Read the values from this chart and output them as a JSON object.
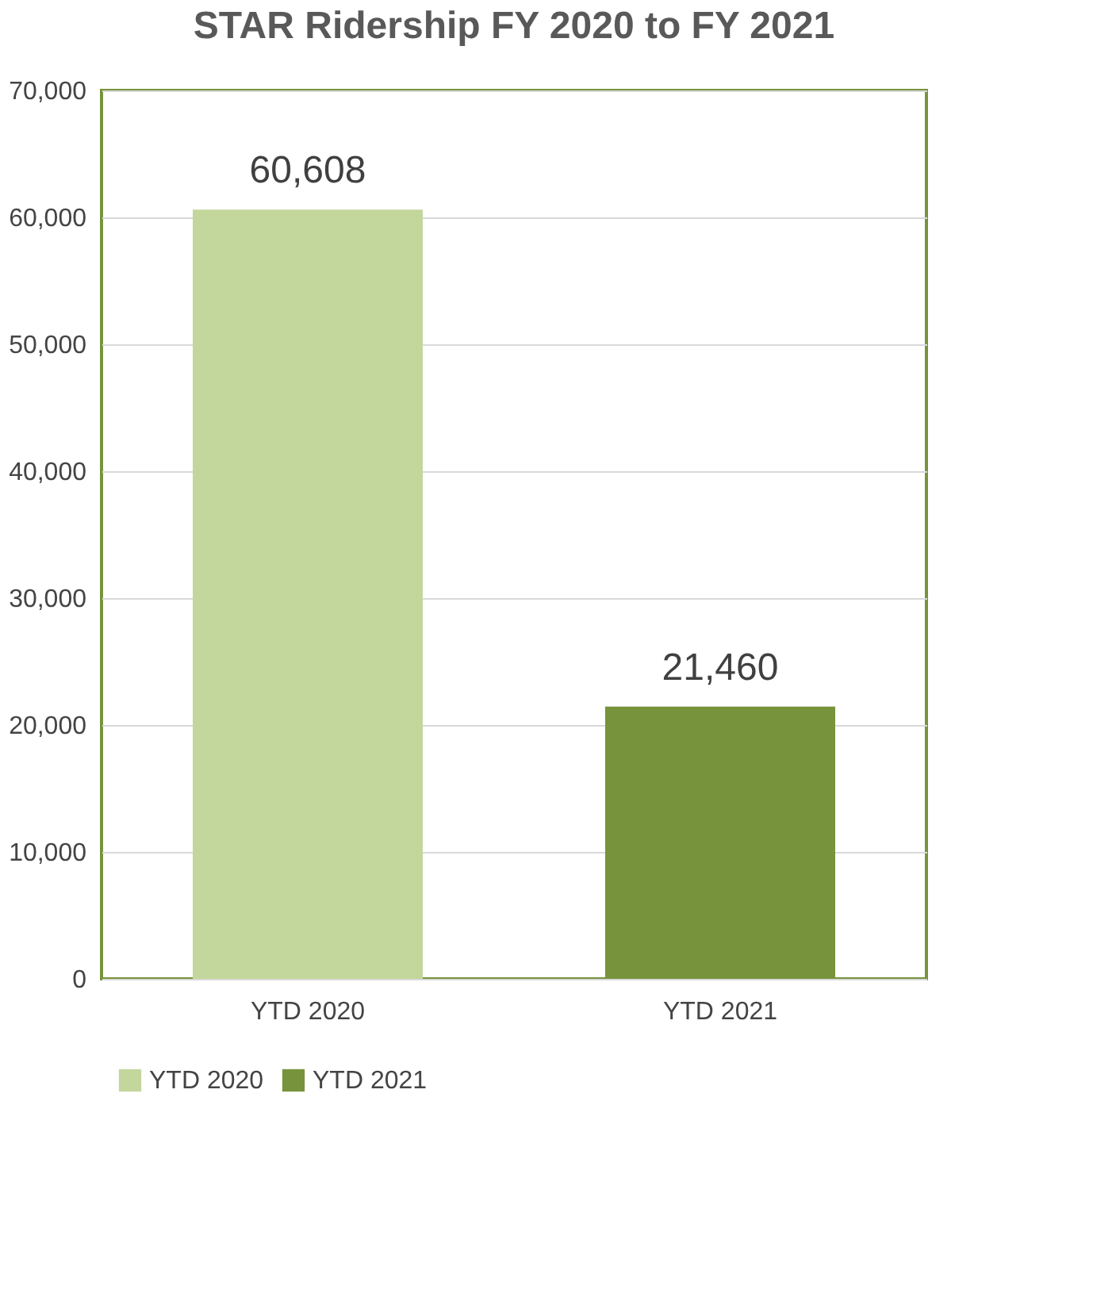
{
  "chart_data": {
    "type": "bar",
    "title": "STAR Ridership FY 2020 to FY 2021",
    "categories": [
      "YTD 2020",
      "YTD 2021"
    ],
    "series": [
      {
        "name": "YTD 2020",
        "color": "#c3d69b",
        "values": [
          60608,
          null
        ],
        "value_labels": [
          "60,608",
          null
        ]
      },
      {
        "name": "YTD 2021",
        "color": "#77933c",
        "values": [
          null,
          21460
        ],
        "value_labels": [
          null,
          "21,460"
        ]
      }
    ],
    "ylim": [
      0,
      70000
    ],
    "yticks": [
      {
        "value": 0,
        "label": "0"
      },
      {
        "value": 10000,
        "label": "10,000"
      },
      {
        "value": 20000,
        "label": "20,000"
      },
      {
        "value": 30000,
        "label": "30,000"
      },
      {
        "value": 40000,
        "label": "40,000"
      },
      {
        "value": 50000,
        "label": "50,000"
      },
      {
        "value": 60000,
        "label": "60,000"
      },
      {
        "value": 70000,
        "label": "70,000"
      }
    ],
    "grid": "y",
    "legend": "bottom"
  }
}
